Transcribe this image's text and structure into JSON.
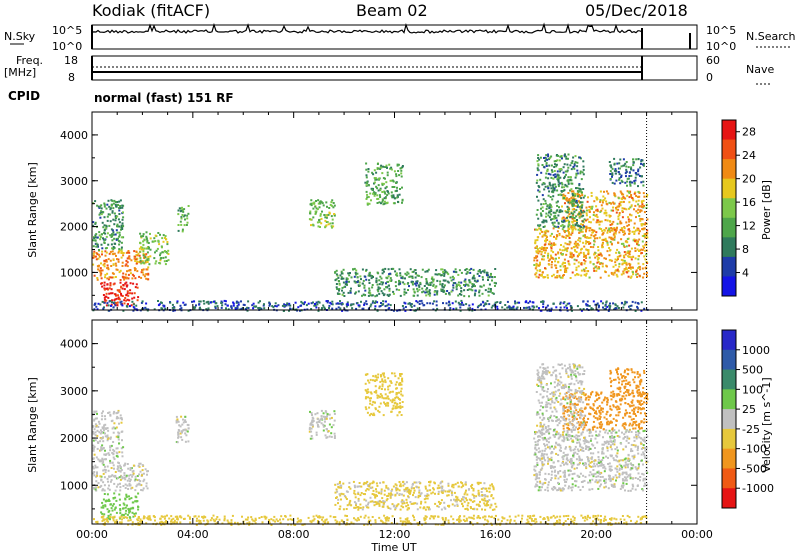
{
  "header": {
    "station": "Kodiak (fitACF)",
    "beam": "Beam 02",
    "date": "05/Dec/2018"
  },
  "top_panels": {
    "sky_label": "N.Sky",
    "sky_ticks": [
      "10^5",
      "10^0"
    ],
    "search_label": "N.Search",
    "search_ticks": [
      "10^5",
      "10^0"
    ],
    "freq_label_1": "Freq.",
    "freq_label_2": "[MHz]",
    "freq_ticks": [
      "18",
      "8"
    ],
    "nave_label": "Nave",
    "nave_ticks": [
      "60",
      "0"
    ],
    "cpid_label": "CPID",
    "cpid_text": "normal (fast) 151 RF"
  },
  "x_axis": {
    "label": "Time UT",
    "ticks": [
      "00:00",
      "04:00",
      "08:00",
      "12:00",
      "16:00",
      "20:00",
      "00:00"
    ]
  },
  "colors": {
    "power": [
      "#1414e6",
      "#1e3ca8",
      "#2f7a5c",
      "#4ea64a",
      "#7cc84a",
      "#e6c81e",
      "#f08a14",
      "#f05014",
      "#e61414"
    ],
    "velocity": [
      "#2828c8",
      "#2e5aa8",
      "#3a8a6a",
      "#6ec84a",
      "#c0c0c0",
      "#e6c83c",
      "#f0961e",
      "#f05a14",
      "#e61414"
    ]
  },
  "chart_data": [
    {
      "type": "heatmap",
      "name": "Power",
      "xlabel": "Time UT",
      "ylabel": "Slant Range [km]",
      "xlim": [
        0,
        24
      ],
      "ylim": [
        180,
        4500
      ],
      "yticks": [
        1000,
        2000,
        3000,
        4000
      ],
      "colorbar_label": "Power [dB]",
      "colorbar_ticks": [
        "4",
        "8",
        "12",
        "16",
        "20",
        "24",
        "28"
      ],
      "clim": [
        0,
        30
      ],
      "regions": [
        {
          "t0": 0.0,
          "t1": 2.2,
          "r0": 850,
          "r1": 1500,
          "level": 22
        },
        {
          "t0": 0.3,
          "t1": 1.8,
          "r0": 300,
          "r1": 800,
          "level": 28
        },
        {
          "t0": 0.0,
          "t1": 1.2,
          "r0": 1500,
          "r1": 2600,
          "level": 10
        },
        {
          "t0": 1.8,
          "t1": 3.0,
          "r0": 1200,
          "r1": 1900,
          "level": 14
        },
        {
          "t0": 3.3,
          "t1": 3.8,
          "r0": 1900,
          "r1": 2500,
          "level": 12
        },
        {
          "t0": 8.6,
          "t1": 9.6,
          "r0": 2000,
          "r1": 2600,
          "level": 14
        },
        {
          "t0": 10.8,
          "t1": 12.3,
          "r0": 2500,
          "r1": 3400,
          "level": 12
        },
        {
          "t0": 0.0,
          "t1": 22.0,
          "r0": 180,
          "r1": 400,
          "level": 6
        },
        {
          "t0": 9.6,
          "t1": 16.0,
          "r0": 500,
          "r1": 1100,
          "level": 10
        },
        {
          "t0": 17.5,
          "t1": 22.0,
          "r0": 900,
          "r1": 2000,
          "level": 20
        },
        {
          "t0": 18.6,
          "t1": 22.0,
          "r0": 1900,
          "r1": 2800,
          "level": 20
        },
        {
          "t0": 17.6,
          "t1": 19.5,
          "r0": 2000,
          "r1": 3600,
          "level": 10
        },
        {
          "t0": 20.5,
          "t1": 21.9,
          "r0": 2900,
          "r1": 3500,
          "level": 8
        }
      ]
    },
    {
      "type": "heatmap",
      "name": "Velocity",
      "xlabel": "Time UT",
      "ylabel": "Slant Range [km]",
      "xlim": [
        0,
        24
      ],
      "ylim": [
        180,
        4500
      ],
      "yticks": [
        1000,
        2000,
        3000,
        4000
      ],
      "colorbar_label": "Velocity [m s^-1]",
      "colorbar_ticks": [
        "1000",
        "500",
        "100",
        "25",
        "-25",
        "-100",
        "-500",
        "-1000"
      ],
      "regions": [
        {
          "t0": 0.0,
          "t1": 2.2,
          "r0": 900,
          "r1": 1500,
          "level": 0
        },
        {
          "t0": 0.3,
          "t1": 1.8,
          "r0": 300,
          "r1": 850,
          "level": 60
        },
        {
          "t0": 0.0,
          "t1": 1.2,
          "r0": 1500,
          "r1": 2600,
          "level": 0
        },
        {
          "t0": 3.3,
          "t1": 3.8,
          "r0": 1900,
          "r1": 2500,
          "level": 0
        },
        {
          "t0": 8.6,
          "t1": 9.6,
          "r0": 2000,
          "r1": 2600,
          "level": 0
        },
        {
          "t0": 10.8,
          "t1": 12.3,
          "r0": 2500,
          "r1": 3400,
          "level": -60
        },
        {
          "t0": 0.0,
          "t1": 22.0,
          "r0": 180,
          "r1": 380,
          "level": -60
        },
        {
          "t0": 9.6,
          "t1": 16.0,
          "r0": 500,
          "r1": 1100,
          "level": -40
        },
        {
          "t0": 17.5,
          "t1": 22.0,
          "r0": 900,
          "r1": 2200,
          "level": 0
        },
        {
          "t0": 18.6,
          "t1": 22.0,
          "r0": 2200,
          "r1": 3000,
          "level": -400
        },
        {
          "t0": 17.6,
          "t1": 19.5,
          "r0": 2000,
          "r1": 3600,
          "level": 0
        },
        {
          "t0": 20.5,
          "t1": 21.9,
          "r0": 2900,
          "r1": 3500,
          "level": -300
        }
      ]
    }
  ]
}
